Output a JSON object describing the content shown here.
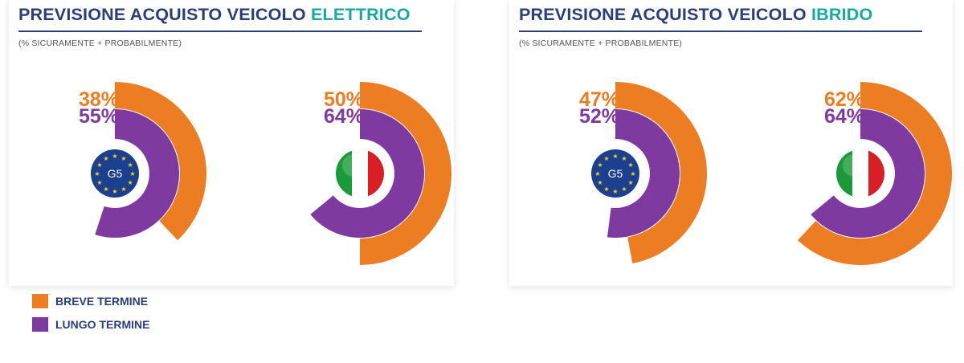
{
  "colors": {
    "short_term": "#ec7d22",
    "long_term": "#7f3aa0",
    "title": "#2c3e7a",
    "highlight": "#18a9a0",
    "eu_flag": "#1d3f8f",
    "eu_stars": "#f5d020",
    "it_green": "#1a9a3a",
    "it_white": "#ffffff",
    "it_red": "#d81f26"
  },
  "legend": {
    "short_label": "BREVE TERMINE",
    "long_label": "LUNGO TERMINE"
  },
  "panels": [
    {
      "title_main": "PREVISIONE ACQUISTO VEICOLO ",
      "title_highlight": "ELETTRICO",
      "subtitle": "(% SICURAMENTE + PROBABILMENTE)",
      "groups": [
        {
          "badge": "eu-flag-icon",
          "badge_text": "G5",
          "short_label": "38%",
          "long_label": "55%"
        },
        {
          "badge": "italy-flag-icon",
          "badge_text": "",
          "short_label": "50%",
          "long_label": "64%"
        }
      ]
    },
    {
      "title_main": "PREVISIONE ACQUISTO VEICOLO ",
      "title_highlight": "IBRIDO",
      "subtitle": "(% SICURAMENTE + PROBABILMENTE)",
      "groups": [
        {
          "badge": "eu-flag-icon",
          "badge_text": "G5",
          "short_label": "47%",
          "long_label": "52%"
        },
        {
          "badge": "italy-flag-icon",
          "badge_text": "",
          "short_label": "62%",
          "long_label": "64%"
        }
      ]
    }
  ],
  "chart_data": [
    {
      "type": "radial_bar",
      "title": "PREVISIONE ACQUISTO VEICOLO ELETTRICO",
      "subtitle": "(% SICURAMENTE + PROBABILMENTE)",
      "categories": [
        "G5",
        "Italia"
      ],
      "series": [
        {
          "name": "BREVE TERMINE",
          "values": [
            38,
            50
          ]
        },
        {
          "name": "LUNGO TERMINE",
          "values": [
            55,
            64
          ]
        }
      ],
      "unit": "%",
      "legend": "bottom-left"
    },
    {
      "type": "radial_bar",
      "title": "PREVISIONE ACQUISTO VEICOLO IBRIDO",
      "subtitle": "(% SICURAMENTE + PROBABILMENTE)",
      "categories": [
        "G5",
        "Italia"
      ],
      "series": [
        {
          "name": "BREVE TERMINE",
          "values": [
            47,
            62
          ]
        },
        {
          "name": "LUNGO TERMINE",
          "values": [
            52,
            64
          ]
        }
      ],
      "unit": "%",
      "legend": "bottom-left"
    }
  ]
}
